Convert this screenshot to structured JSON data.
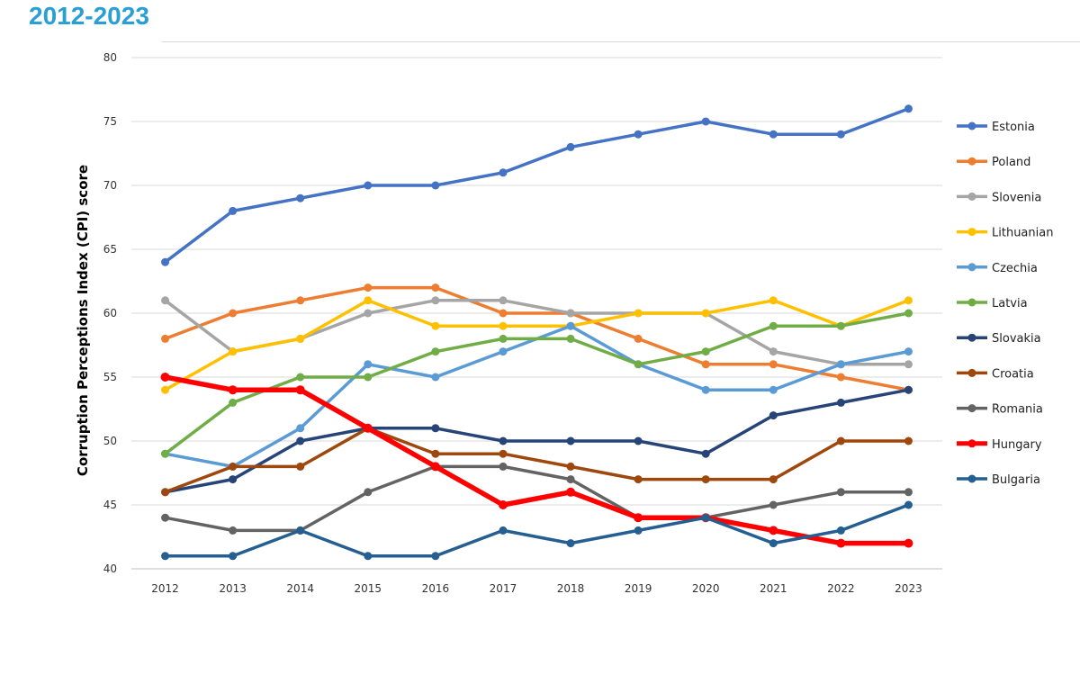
{
  "header": {
    "title": "2012-2023"
  },
  "chart_data": {
    "type": "line",
    "title": "",
    "xlabel": "",
    "ylabel": "Corruption Perceptions Index (CPI) score",
    "x": [
      "2012",
      "2013",
      "2014",
      "2015",
      "2016",
      "2017",
      "2018",
      "2019",
      "2020",
      "2021",
      "2022",
      "2023"
    ],
    "ylim": [
      40,
      80
    ],
    "yticks": [
      40,
      45,
      50,
      55,
      60,
      65,
      70,
      75,
      80
    ],
    "grid": true,
    "legend": "right",
    "series": [
      {
        "name": "Estonia",
        "color": "#4472c4",
        "values": [
          64,
          68,
          69,
          70,
          70,
          71,
          73,
          74,
          75,
          74,
          74,
          76
        ]
      },
      {
        "name": "Poland",
        "color": "#ed7d31",
        "values": [
          58,
          60,
          61,
          62,
          62,
          60,
          60,
          58,
          56,
          56,
          55,
          54
        ]
      },
      {
        "name": "Slovenia",
        "color": "#a5a5a5",
        "values": [
          61,
          57,
          58,
          60,
          61,
          61,
          60,
          60,
          60,
          57,
          56,
          56
        ]
      },
      {
        "name": "Lithuanian",
        "color": "#ffc000",
        "values": [
          54,
          57,
          58,
          61,
          59,
          59,
          59,
          60,
          60,
          61,
          59,
          61
        ]
      },
      {
        "name": "Czechia",
        "color": "#5b9bd5",
        "values": [
          49,
          48,
          51,
          56,
          55,
          57,
          59,
          56,
          54,
          54,
          56,
          57
        ]
      },
      {
        "name": "Latvia",
        "color": "#70ad47",
        "values": [
          49,
          53,
          55,
          55,
          57,
          58,
          58,
          56,
          57,
          59,
          59,
          60
        ]
      },
      {
        "name": "Slovakia",
        "color": "#264478",
        "values": [
          46,
          47,
          50,
          51,
          51,
          50,
          50,
          50,
          49,
          52,
          53,
          54
        ]
      },
      {
        "name": "Croatia",
        "color": "#9e480e",
        "values": [
          46,
          48,
          48,
          51,
          49,
          49,
          48,
          47,
          47,
          47,
          50,
          50
        ]
      },
      {
        "name": "Romania",
        "color": "#636363",
        "values": [
          44,
          43,
          43,
          46,
          48,
          48,
          47,
          44,
          44,
          45,
          46,
          46
        ]
      },
      {
        "name": "Hungary",
        "color": "#ff0000",
        "values": [
          55,
          54,
          54,
          51,
          48,
          45,
          46,
          44,
          44,
          43,
          42,
          42
        ]
      },
      {
        "name": "Bulgaria",
        "color": "#255e91",
        "values": [
          41,
          41,
          43,
          41,
          41,
          43,
          42,
          43,
          44,
          42,
          43,
          45
        ]
      }
    ]
  }
}
